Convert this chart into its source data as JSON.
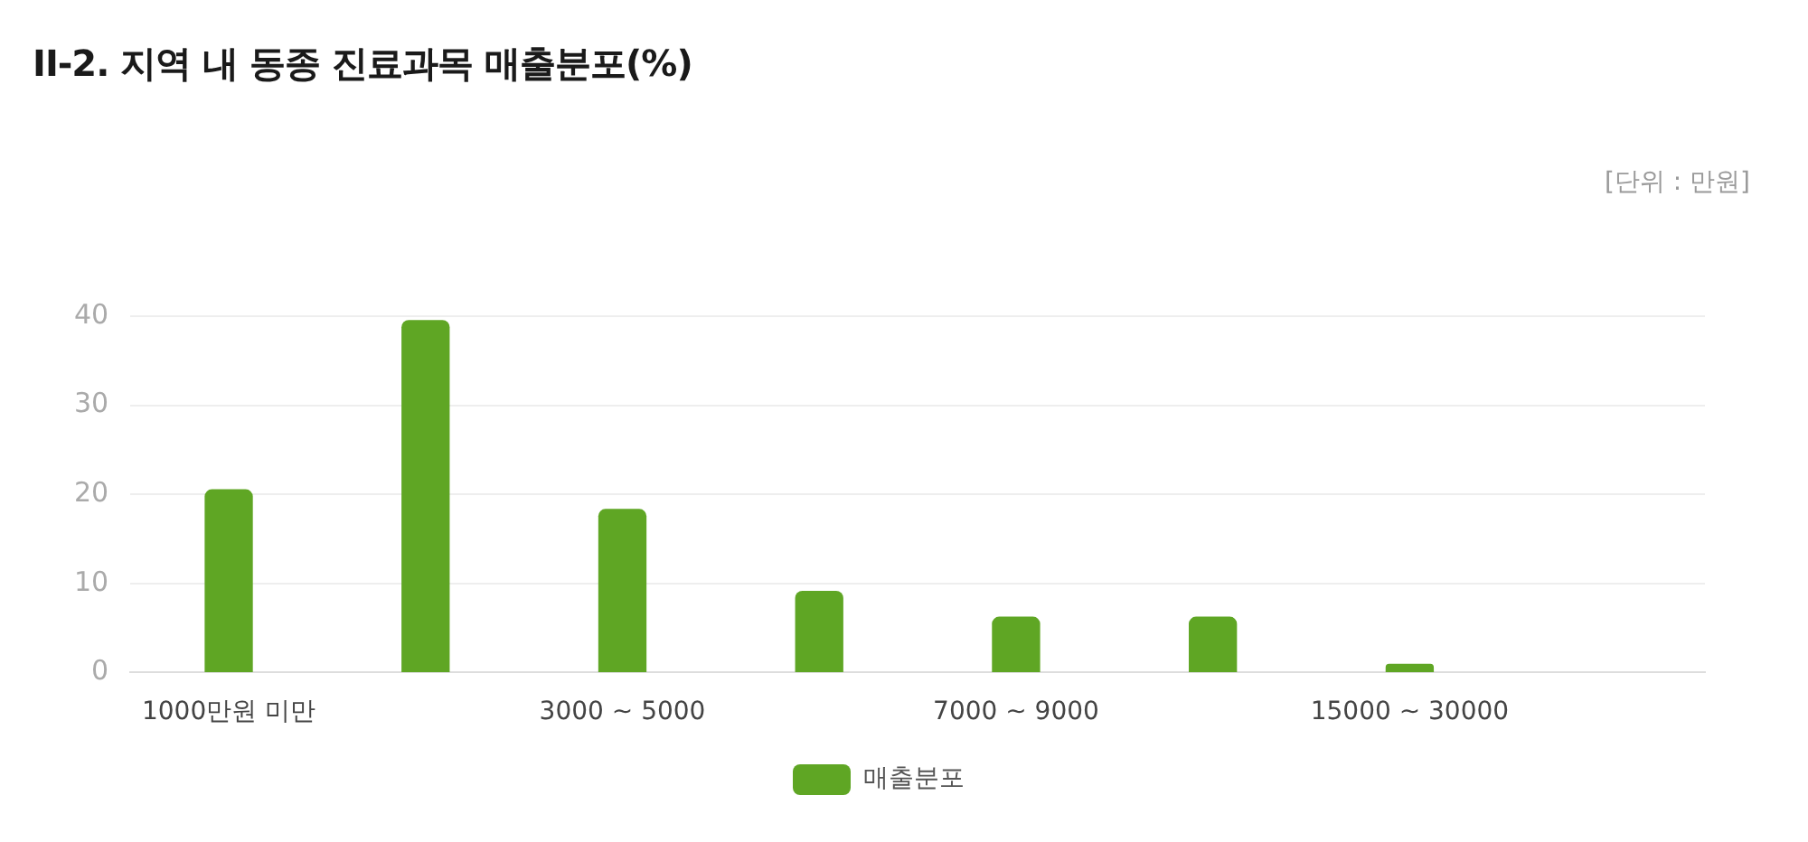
{
  "chart_data": {
    "type": "bar",
    "title": "II-2. 지역 내 동종 진료과목 매출분포(%)",
    "annotations": [
      "[단위 : 만원]"
    ],
    "categories": [
      "1000만원 미만",
      null,
      "3000 ~ 5000",
      null,
      "7000 ~ 9000",
      null,
      "15000 ~ 30000",
      null
    ],
    "series": [
      {
        "name": "매출분포",
        "color": "#5fa624",
        "values": [
          20.5,
          39.5,
          18.3,
          9.1,
          6.2,
          6.2,
          0.9,
          0
        ]
      }
    ],
    "ylim": [
      0,
      40
    ],
    "yticks": [
      0,
      10,
      20,
      30,
      40
    ],
    "grid": "y",
    "legend": "bottom"
  }
}
